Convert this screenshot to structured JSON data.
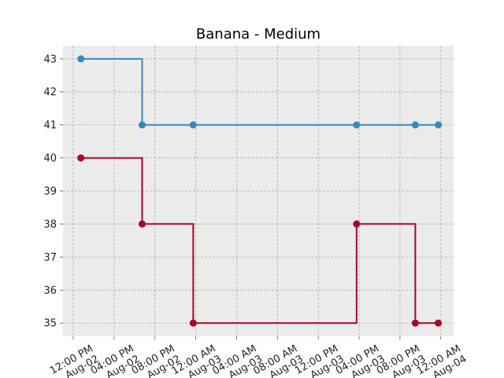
{
  "colors": {
    "plot_background": "#ebebeb",
    "grid": "#b0b0b0",
    "upper_series": "#348abd",
    "lower_series": "#a60628"
  },
  "chart_data": {
    "type": "line",
    "step": "post",
    "title": "Banana - Medium",
    "xlabel": "",
    "ylabel": "",
    "grid": true,
    "xlim": [
      "2023-08-02 11:00",
      "2023-08-04 01:15"
    ],
    "ylim": [
      34.6,
      43.4
    ],
    "yticks": [
      35,
      36,
      37,
      38,
      39,
      40,
      41,
      42,
      43
    ],
    "xticks": [
      {
        "at": "2023-08-02 12:00",
        "label": "12:00 PM\nAug-02"
      },
      {
        "at": "2023-08-02 16:00",
        "label": "04:00 PM\nAug-02"
      },
      {
        "at": "2023-08-02 20:00",
        "label": "08:00 PM\nAug-02"
      },
      {
        "at": "2023-08-03 00:00",
        "label": "12:00 AM\nAug-03"
      },
      {
        "at": "2023-08-03 04:00",
        "label": "04:00 AM\nAug-03"
      },
      {
        "at": "2023-08-03 08:00",
        "label": "08:00 AM\nAug-03"
      },
      {
        "at": "2023-08-03 12:00",
        "label": "12:00 PM\nAug-03"
      },
      {
        "at": "2023-08-03 16:00",
        "label": "04:00 PM\nAug-03"
      },
      {
        "at": "2023-08-03 20:00",
        "label": "08:00 PM\nAug-03"
      },
      {
        "at": "2023-08-04 00:00",
        "label": "12:00 AM\nAug-04"
      }
    ],
    "series": [
      {
        "color": "#348abd",
        "points": [
          {
            "x": "2023-08-02 12:45",
            "y": 43
          },
          {
            "x": "2023-08-02 18:45",
            "y": 41
          },
          {
            "x": "2023-08-02 23:45",
            "y": 41
          },
          {
            "x": "2023-08-03 15:45",
            "y": 41
          },
          {
            "x": "2023-08-03 21:30",
            "y": 41
          },
          {
            "x": "2023-08-03 23:45",
            "y": 41
          }
        ]
      },
      {
        "color": "#a60628",
        "points": [
          {
            "x": "2023-08-02 12:45",
            "y": 40
          },
          {
            "x": "2023-08-02 18:45",
            "y": 38
          },
          {
            "x": "2023-08-02 23:45",
            "y": 35
          },
          {
            "x": "2023-08-03 15:45",
            "y": 38
          },
          {
            "x": "2023-08-03 21:30",
            "y": 35
          },
          {
            "x": "2023-08-03 23:45",
            "y": 35
          }
        ]
      }
    ]
  }
}
